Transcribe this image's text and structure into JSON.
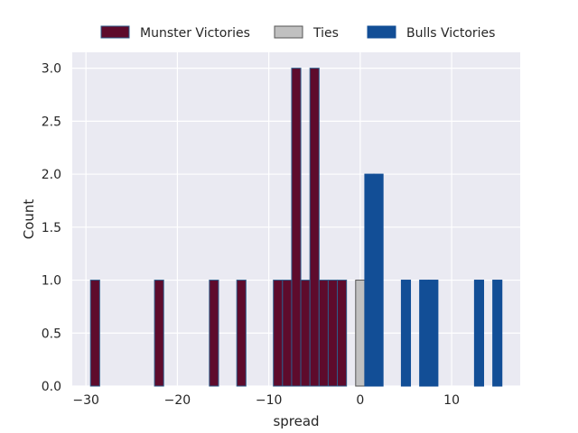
{
  "chart_data": {
    "type": "bar",
    "title": "",
    "xlabel": "spread",
    "ylabel": "Count",
    "xlim": [
      -31.5,
      17.5
    ],
    "ylim": [
      0,
      3.15
    ],
    "grid": true,
    "legend_position": "top-center",
    "x_ticks": [
      -30,
      -20,
      -10,
      0,
      10
    ],
    "x_tick_labels": [
      "−30",
      "−20",
      "−10",
      "0",
      "10"
    ],
    "y_ticks": [
      0,
      0.5,
      1,
      1.5,
      2,
      2.5,
      3
    ],
    "y_tick_labels": [
      "0.0",
      "0.5",
      "1.0",
      "1.5",
      "2.0",
      "2.5",
      "3.0"
    ],
    "series": [
      {
        "name": "Munster Victories",
        "color": "#5e0b2c",
        "edge_color": "#2f5d8a",
        "values": [
          {
            "x": -29,
            "y": 1
          },
          {
            "x": -22,
            "y": 1
          },
          {
            "x": -16,
            "y": 1
          },
          {
            "x": -13,
            "y": 1
          },
          {
            "x": -9,
            "y": 1
          },
          {
            "x": -8,
            "y": 1
          },
          {
            "x": -7,
            "y": 3
          },
          {
            "x": -6,
            "y": 1
          },
          {
            "x": -5,
            "y": 3
          },
          {
            "x": -4,
            "y": 1
          },
          {
            "x": -3,
            "y": 1
          },
          {
            "x": -2,
            "y": 1
          }
        ]
      },
      {
        "name": "Ties",
        "color": "#c0c0c0",
        "edge_color": "#555555",
        "values": [
          {
            "x": 0,
            "y": 1
          }
        ]
      },
      {
        "name": "Bulls Victories",
        "color": "#124e96",
        "edge_color": "#124e96",
        "values": [
          {
            "x": 1,
            "y": 2
          },
          {
            "x": 2,
            "y": 2
          },
          {
            "x": 5,
            "y": 1
          },
          {
            "x": 7,
            "y": 1
          },
          {
            "x": 8,
            "y": 1
          },
          {
            "x": 13,
            "y": 1
          },
          {
            "x": 15,
            "y": 1
          }
        ]
      }
    ]
  }
}
